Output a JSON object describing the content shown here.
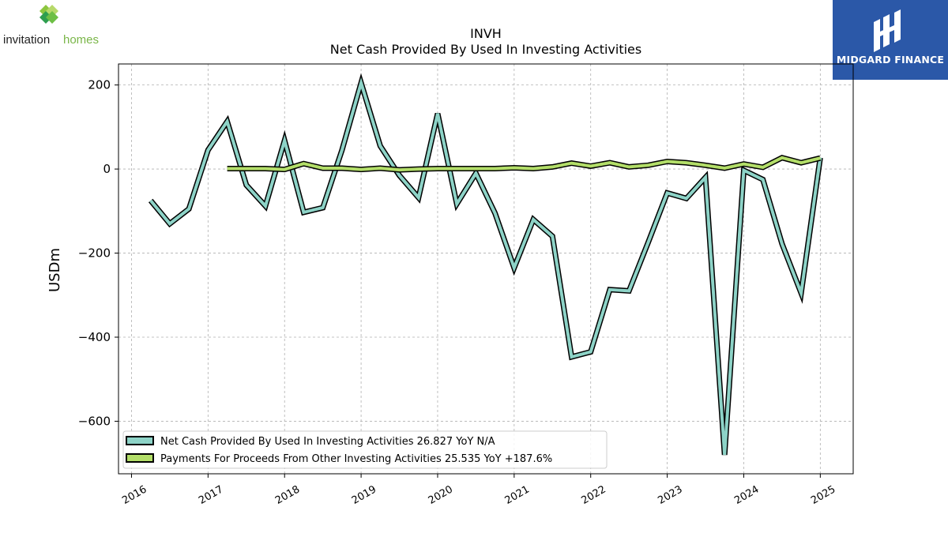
{
  "brand_left": {
    "wordmark_a": "invitation",
    "wordmark_b": "homes"
  },
  "brand_right": {
    "name": "MIDGARD FINANCE",
    "color": "#2b58a8"
  },
  "chart_data": {
    "type": "line",
    "title": "INVH",
    "subtitle": "Net Cash Provided By Used In Investing Activities",
    "xlabel": "",
    "ylabel": "USDm",
    "ylim": [
      -725,
      250
    ],
    "xlim": [
      2015.83,
      2025.43
    ],
    "yticks": [
      200,
      0,
      -200,
      -400,
      -600
    ],
    "ytick_labels": [
      "200",
      "0",
      "−200",
      "−400",
      "−600"
    ],
    "xticks": [
      "2016",
      "2017",
      "2018",
      "2019",
      "2020",
      "2021",
      "2022",
      "2023",
      "2024",
      "2025"
    ],
    "grid": true,
    "legend_position": "lower-left",
    "series": [
      {
        "name": "Net Cash Provided By Used In Investing Activities",
        "legend_label": "Net Cash Provided By Used In Investing Activities  26.827 YoY N/A",
        "color": "#8dd3c7",
        "points": [
          [
            2016.25,
            -75
          ],
          [
            2016.5,
            -130
          ],
          [
            2016.75,
            -95
          ],
          [
            2017.0,
            45
          ],
          [
            2017.25,
            113
          ],
          [
            2017.5,
            -38
          ],
          [
            2017.75,
            -88
          ],
          [
            2018.0,
            68
          ],
          [
            2018.25,
            -103
          ],
          [
            2018.5,
            -92
          ],
          [
            2018.75,
            45
          ],
          [
            2019.0,
            205
          ],
          [
            2019.25,
            55
          ],
          [
            2019.5,
            -15
          ],
          [
            2019.75,
            -68
          ],
          [
            2020.0,
            132
          ],
          [
            2020.25,
            -83
          ],
          [
            2020.5,
            -10
          ],
          [
            2020.75,
            -105
          ],
          [
            2021.0,
            -235
          ],
          [
            2021.25,
            -120
          ],
          [
            2021.5,
            -160
          ],
          [
            2021.75,
            -447
          ],
          [
            2022.0,
            -435
          ],
          [
            2022.25,
            -287
          ],
          [
            2022.5,
            -290
          ],
          [
            2022.75,
            -175
          ],
          [
            2023.0,
            -57
          ],
          [
            2023.25,
            -70
          ],
          [
            2023.5,
            -20
          ],
          [
            2023.75,
            -680
          ],
          [
            2024.0,
            -3
          ],
          [
            2024.25,
            -25
          ],
          [
            2024.5,
            -178
          ],
          [
            2024.75,
            -295
          ],
          [
            2025.0,
            27
          ]
        ]
      },
      {
        "name": "Payments For Proceeds From Other Investing Activities",
        "legend_label": "Payments For Proceeds From Other Investing Activities  25.535 YoY +187.6%",
        "color": "#b3de69",
        "points": [
          [
            2017.25,
            1
          ],
          [
            2017.5,
            1
          ],
          [
            2017.75,
            1
          ],
          [
            2018.0,
            -1
          ],
          [
            2018.25,
            13
          ],
          [
            2018.5,
            2
          ],
          [
            2018.75,
            2
          ],
          [
            2019.0,
            -1
          ],
          [
            2019.25,
            2
          ],
          [
            2019.5,
            -2
          ],
          [
            2019.75,
            0
          ],
          [
            2020.0,
            1
          ],
          [
            2020.25,
            1
          ],
          [
            2020.5,
            1
          ],
          [
            2020.75,
            1
          ],
          [
            2021.0,
            3
          ],
          [
            2021.25,
            1
          ],
          [
            2021.5,
            5
          ],
          [
            2021.75,
            14
          ],
          [
            2022.0,
            7
          ],
          [
            2022.25,
            15
          ],
          [
            2022.5,
            5
          ],
          [
            2022.75,
            9
          ],
          [
            2023.0,
            18
          ],
          [
            2023.25,
            15
          ],
          [
            2023.5,
            9
          ],
          [
            2023.75,
            2
          ],
          [
            2024.0,
            12
          ],
          [
            2024.25,
            4
          ],
          [
            2024.5,
            27
          ],
          [
            2024.75,
            15
          ],
          [
            2025.0,
            26
          ]
        ]
      }
    ]
  }
}
